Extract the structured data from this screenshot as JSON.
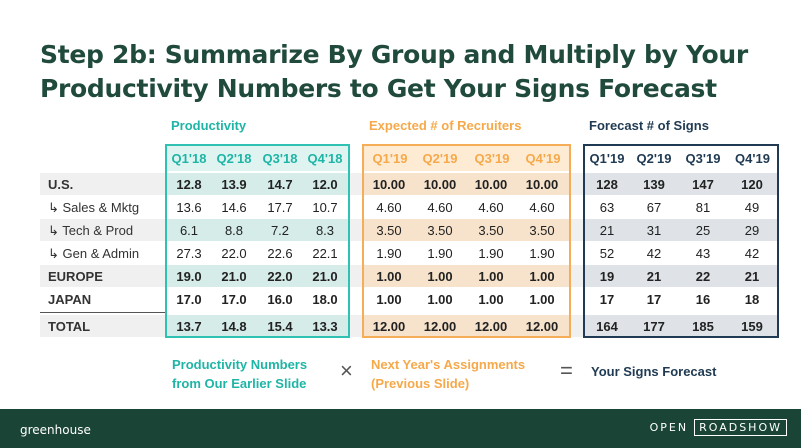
{
  "title": {
    "line1": "Step 2b: Summarize By Group and Multiply by Your",
    "line2": "Productivity Numbers to Get Your Signs Forecast"
  },
  "sections": {
    "productivity": "Productivity",
    "recruiters": "Expected # of Recruiters",
    "signs": "Forecast # of Signs"
  },
  "quarters": {
    "productivity": [
      "Q1'18",
      "Q2'18",
      "Q3'18",
      "Q4'18"
    ],
    "recruiters": [
      "Q1'19",
      "Q2'19",
      "Q3'19",
      "Q4'19"
    ],
    "signs": [
      "Q1'19",
      "Q2'19",
      "Q3'19",
      "Q4'19"
    ]
  },
  "rows": [
    {
      "label": "U.S.",
      "productivity": [
        "12.8",
        "13.9",
        "14.7",
        "12.0"
      ],
      "recruiters": [
        "10.00",
        "10.00",
        "10.00",
        "10.00"
      ],
      "signs": [
        "128",
        "139",
        "147",
        "120"
      ]
    },
    {
      "label": "↳ Sales & Mktg",
      "productivity": [
        "13.6",
        "14.6",
        "17.7",
        "10.7"
      ],
      "recruiters": [
        "4.60",
        "4.60",
        "4.60",
        "4.60"
      ],
      "signs": [
        "63",
        "67",
        "81",
        "49"
      ]
    },
    {
      "label": "↳ Tech & Prod",
      "productivity": [
        "6.1",
        "8.8",
        "7.2",
        "8.3"
      ],
      "recruiters": [
        "3.50",
        "3.50",
        "3.50",
        "3.50"
      ],
      "signs": [
        "21",
        "31",
        "25",
        "29"
      ]
    },
    {
      "label": "↳ Gen & Admin",
      "productivity": [
        "27.3",
        "22.0",
        "22.6",
        "22.1"
      ],
      "recruiters": [
        "1.90",
        "1.90",
        "1.90",
        "1.90"
      ],
      "signs": [
        "52",
        "42",
        "43",
        "42"
      ]
    },
    {
      "label": "EUROPE",
      "productivity": [
        "19.0",
        "21.0",
        "22.0",
        "21.0"
      ],
      "recruiters": [
        "1.00",
        "1.00",
        "1.00",
        "1.00"
      ],
      "signs": [
        "19",
        "21",
        "22",
        "21"
      ]
    },
    {
      "label": "JAPAN",
      "productivity": [
        "17.0",
        "17.0",
        "16.0",
        "18.0"
      ],
      "recruiters": [
        "1.00",
        "1.00",
        "1.00",
        "1.00"
      ],
      "signs": [
        "17",
        "17",
        "16",
        "18"
      ]
    },
    {
      "label": "TOTAL",
      "productivity": [
        "13.7",
        "14.8",
        "15.4",
        "13.3"
      ],
      "recruiters": [
        "12.00",
        "12.00",
        "12.00",
        "12.00"
      ],
      "signs": [
        "164",
        "177",
        "185",
        "159"
      ]
    }
  ],
  "footer_labels": {
    "productivity_line1": "Productivity Numbers",
    "productivity_line2": "from Our Earlier Slide",
    "times": "×",
    "assignments_line1": "Next Year's Assignments",
    "assignments_line2": "(Previous Slide)",
    "equals": "=",
    "forecast": "Your Signs Forecast"
  },
  "brand": {
    "logo": "greenhouse",
    "open": "OPEN",
    "roadshow": "ROADSHOW"
  },
  "colors": {
    "title": "#1f4a3c",
    "teal": "#1fb5a6",
    "orange": "#f6a94a",
    "navy": "#1f3a52",
    "footer": "#1a4536"
  }
}
